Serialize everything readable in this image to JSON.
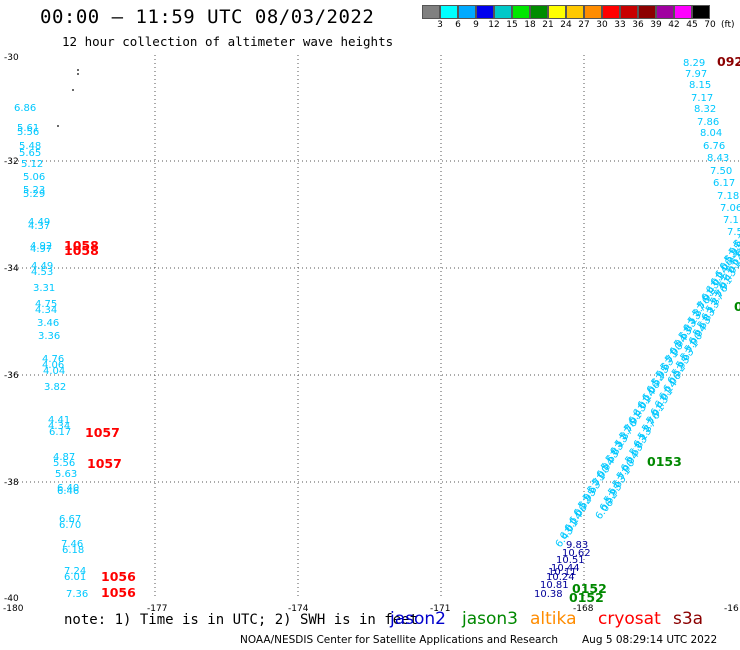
{
  "header": {
    "title": "00:00 — 11:59 UTC 08/03/2022",
    "subtitle": "12 hour collection of altimeter wave heights"
  },
  "colorbar": {
    "colors": [
      "#808080",
      "#00ffff",
      "#00aaff",
      "#0000ee",
      "#00c8c8",
      "#00e600",
      "#008c00",
      "#ffff00",
      "#ffc800",
      "#ff8c00",
      "#ff0000",
      "#c80000",
      "#8c0000",
      "#a000a0",
      "#ff00ff",
      "#000000"
    ],
    "labels": [
      "3",
      "6",
      "9",
      "12",
      "15",
      "18",
      "21",
      "24",
      "27",
      "30",
      "33",
      "36",
      "39",
      "42",
      "45",
      "70"
    ],
    "unit": "(ft)"
  },
  "axes": {
    "x_ticks": [
      "-180",
      "-177",
      "-174",
      "-171",
      "-168",
      "-16"
    ],
    "y_ticks": [
      "-30",
      "-32",
      "-34",
      "-36",
      "-38",
      "-40"
    ]
  },
  "labels": {
    "west_waves": [
      "6.86",
      "5.61",
      "5.56",
      "5.48",
      "5.65",
      "5.12",
      "5.06",
      "5.23",
      "5.29",
      "4.49",
      "4.37",
      "4.92",
      "4.97",
      "4.49",
      "4.53",
      "3.31",
      "4.75",
      "4.34",
      "3.46",
      "3.36",
      "4.76",
      "4.06",
      "4.04",
      "3.82",
      "4.41",
      "4.34",
      "6.17",
      "4.87",
      "5.56",
      "5.63",
      "6.40",
      "6.46",
      "6.67",
      "6.70",
      "7.46",
      "6.18",
      "7.24",
      "6.01",
      "7.36"
    ],
    "west_times": [
      "1058",
      "1058",
      "1057",
      "1057",
      "1056",
      "1056"
    ],
    "east_waves": [
      "8.29",
      "7.97",
      "8.15",
      "7.17",
      "8.32",
      "7.86",
      "8.04",
      "6.76",
      "8.43",
      "7.50",
      "6.17",
      "7.18",
      "7.06",
      "7.1",
      "7.5",
      "6.43",
      "6.01",
      "6.14",
      "6.06",
      "6.52",
      "5.95",
      "5.63",
      "5.71",
      "5.90",
      "6.04",
      "5.63",
      "5.83",
      "6.13",
      "5.87",
      "5.76",
      "5.91"
    ],
    "east_time_top": "092",
    "east_time_mid": "0153",
    "east_time_right": "0",
    "south_waves": [
      "9.83",
      "10.62",
      "10.51",
      "10.44",
      "10.24",
      "10.38",
      "10.11",
      "10.81"
    ],
    "south_times": [
      "0152",
      "0152"
    ]
  },
  "note": "note: 1) Time is in UTC; 2) SWH is in feet",
  "satellites": [
    {
      "name": "jason2",
      "color": "#0000cc"
    },
    {
      "name": "jason3",
      "color": "#008800"
    },
    {
      "name": "altika",
      "color": "#ff8c00"
    },
    {
      "name": "cryosat",
      "color": "#ff0000"
    },
    {
      "name": "s3a",
      "color": "#8b0000"
    }
  ],
  "footer": {
    "credit": "NOAA/NESDIS Center for Satellite Applications and Research",
    "timestamp": "Aug  5 08:29:14 UTC 2022"
  }
}
